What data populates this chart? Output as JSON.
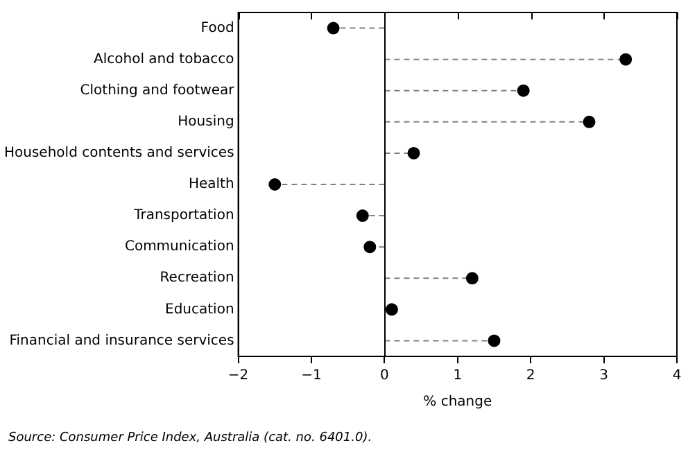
{
  "chart_data": {
    "type": "lollipop",
    "orientation": "horizontal",
    "xlabel": "% change",
    "categories": [
      "Food",
      "Alcohol and tobacco",
      "Clothing and footwear",
      "Housing",
      "Household contents and services",
      "Health",
      "Transportation",
      "Communication",
      "Recreation",
      "Education",
      "Financial and insurance services"
    ],
    "values": [
      -0.7,
      3.3,
      1.9,
      2.8,
      0.4,
      -1.5,
      -0.3,
      -0.2,
      1.2,
      0.1,
      1.5
    ],
    "color": "#000000",
    "marker": "circle",
    "line_style": "dashed",
    "xlim": [
      -2,
      4
    ],
    "xticks": [
      {
        "value": -2,
        "label": "−2"
      },
      {
        "value": -1,
        "label": "−1"
      },
      0,
      1,
      2,
      3,
      4
    ],
    "ref_lines": [
      {
        "axis": "x",
        "value": 0,
        "color": "#000000"
      }
    ],
    "grid": false,
    "legend": false,
    "annotations": [
      "Source: Consumer Price Index, Australia (cat. no. 6401.0)."
    ]
  }
}
